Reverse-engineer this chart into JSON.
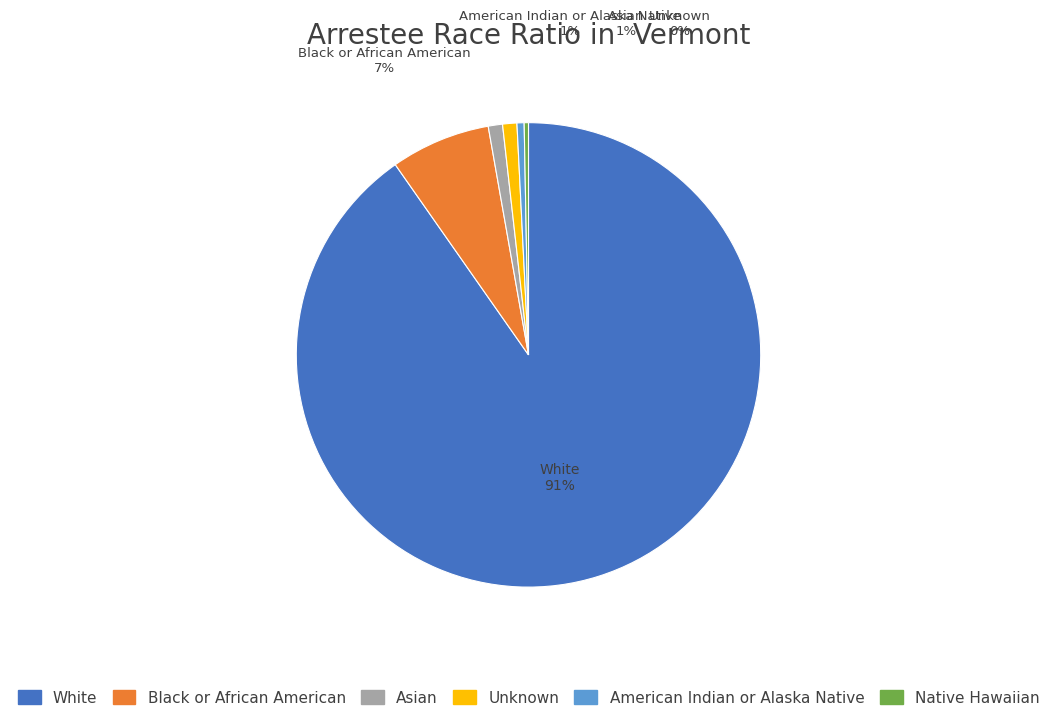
{
  "title": "Arrestee Race Ratio in  Vermont",
  "labels": [
    "White",
    "Black or African American",
    "Asian",
    "Unknown",
    "American Indian or Alaska Native",
    "Native Hawaiian"
  ],
  "values": [
    91,
    7,
    1,
    1,
    0.5,
    0.3
  ],
  "display_pcts": [
    "91%",
    "7%",
    "1%",
    "1%",
    "0%",
    "0%"
  ],
  "colors": [
    "#4472C4",
    "#ED7D31",
    "#A5A5A5",
    "#FFC000",
    "#5B9BD5",
    "#70AD47"
  ],
  "startangle": 90,
  "title_fontsize": 20,
  "legend_fontsize": 11,
  "background_color": "#FFFFFF",
  "text_color": "#404040"
}
